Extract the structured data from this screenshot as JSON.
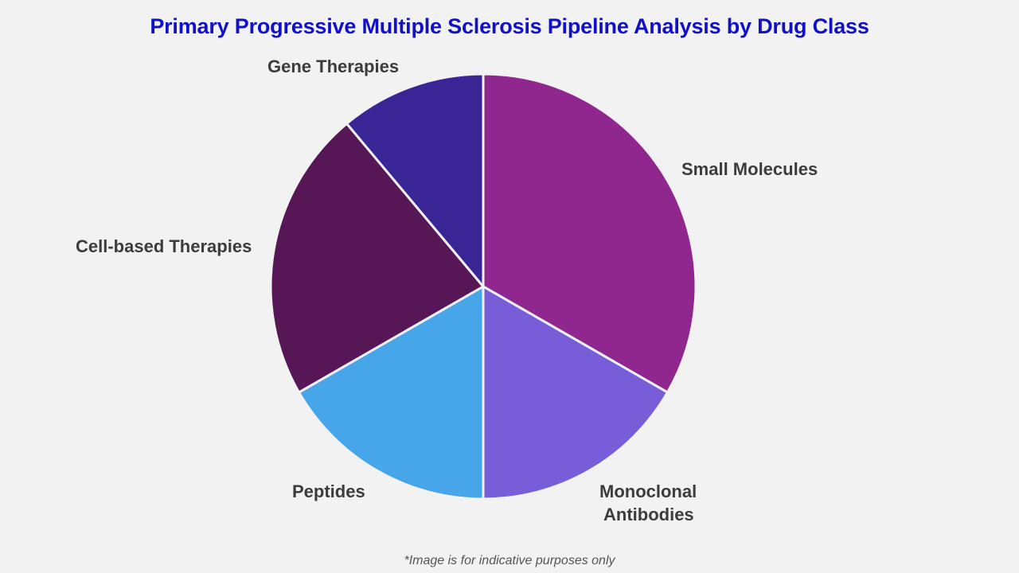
{
  "title": "Primary Progressive Multiple Sclerosis Pipeline Analysis by Drug Class",
  "footnote": "*Image is for indicative purposes only",
  "labels": {
    "small_molecules": "Small Molecules",
    "monoclonal_1": "Monoclonal",
    "monoclonal_2": "Antibodies",
    "peptides": "Peptides",
    "cell_based": "Cell-based Therapies",
    "gene": "Gene Therapies"
  },
  "chart_data": {
    "type": "pie",
    "title": "Primary Progressive Multiple Sclerosis Pipeline Analysis by Drug Class",
    "categories": [
      "Small Molecules",
      "Monoclonal Antibodies",
      "Peptides",
      "Cell-based Therapies",
      "Gene Therapies"
    ],
    "values": [
      33.3,
      16.7,
      16.7,
      22.2,
      11.1
    ],
    "unit": "% share (estimated from slice angles)",
    "colors": [
      "#90278e",
      "#775ed8",
      "#47a6ea",
      "#571757",
      "#3a2596"
    ],
    "start_angle": "12 o'clock, clockwise",
    "legend": "none (direct labels)",
    "annotations": [
      "*Image is for indicative purposes only"
    ]
  }
}
